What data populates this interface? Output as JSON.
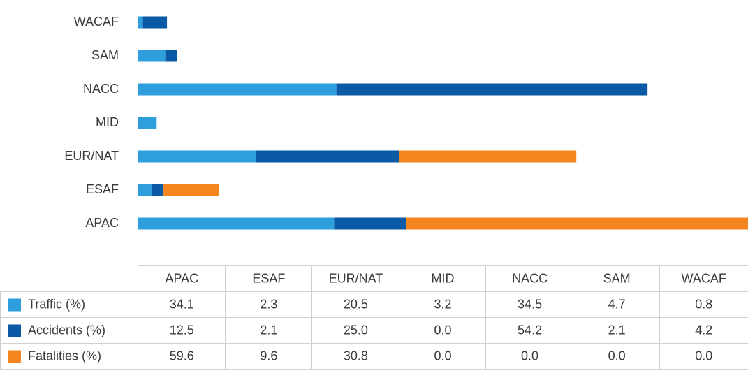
{
  "chart_data": {
    "type": "bar",
    "orientation": "horizontal",
    "stacked": true,
    "categories": [
      "APAC",
      "ESAF",
      "EUR/NAT",
      "MID",
      "NACC",
      "SAM",
      "WACAF"
    ],
    "series": [
      {
        "name": "Traffic (%)",
        "color": "#2e9fdc",
        "values": [
          34.1,
          2.3,
          20.5,
          3.2,
          34.5,
          4.7,
          0.8
        ],
        "value_labels": [
          "34.1",
          "2.3",
          "20.5",
          "3.2",
          "34.5",
          "4.7",
          "0.8"
        ]
      },
      {
        "name": "Accidents (%)",
        "color": "#0a5aa6",
        "values": [
          12.5,
          2.1,
          25,
          0,
          54.2,
          2.1,
          4.2
        ],
        "value_labels": [
          "12.5",
          "2.1",
          "25.0",
          "0.0",
          "54.2",
          "2.1",
          "4.2"
        ]
      },
      {
        "name": "Fatalities (%)",
        "color": "#f5861f",
        "values": [
          59.6,
          9.6,
          30.8,
          0,
          0,
          0,
          0
        ],
        "value_labels": [
          "59.6",
          "9.6",
          "30.8",
          "0.0",
          "0.0",
          "0.0",
          "0.0"
        ]
      }
    ]
  }
}
